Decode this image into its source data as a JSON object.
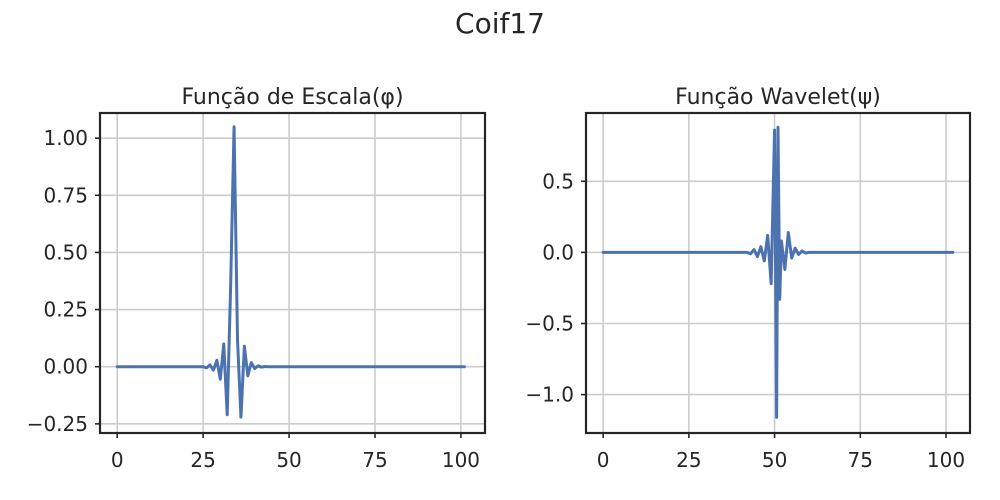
{
  "figure": {
    "title": "Coif17"
  },
  "chart_data": [
    {
      "type": "line",
      "title": "Função de Escala(φ)",
      "xlabel": "",
      "ylabel": "",
      "xlim": [
        -5,
        107
      ],
      "ylim": [
        -0.29,
        1.11
      ],
      "xticks": [
        0,
        25,
        50,
        75,
        100
      ],
      "xtick_labels": [
        "0",
        "25",
        "50",
        "75",
        "100"
      ],
      "yticks": [
        -0.25,
        0,
        0.25,
        0.5,
        0.75,
        1.0
      ],
      "ytick_labels": [
        "−0.25",
        "0.00",
        "0.25",
        "0.50",
        "0.75",
        "1.00"
      ],
      "grid": true,
      "color": "#4c72b0",
      "series": [
        {
          "x": [
            0,
            25,
            26,
            27,
            28,
            29,
            30,
            31,
            32,
            33,
            34,
            35,
            36,
            37,
            38,
            39,
            40,
            41,
            42,
            43,
            44,
            45,
            101
          ],
          "y": [
            0,
            0,
            -0.005,
            0.008,
            -0.015,
            0.028,
            -0.055,
            0.1,
            -0.21,
            0.35,
            1.05,
            0.12,
            -0.22,
            0.09,
            -0.04,
            0.018,
            -0.008,
            0.004,
            -0.002,
            0.001,
            0,
            0,
            0
          ]
        }
      ]
    },
    {
      "type": "line",
      "title": "Função Wavelet(ψ)",
      "xlabel": "",
      "ylabel": "",
      "xlim": [
        -5,
        107
      ],
      "ylim": [
        -1.27,
        0.98
      ],
      "xticks": [
        0,
        25,
        50,
        75,
        100
      ],
      "xtick_labels": [
        "0",
        "25",
        "50",
        "75",
        "100"
      ],
      "yticks": [
        -1.0,
        -0.5,
        0,
        0.5
      ],
      "ytick_labels": [
        "−1.0",
        "−0.5",
        "0.0",
        "0.5"
      ],
      "grid": true,
      "color": "#4c72b0",
      "series": [
        {
          "x": [
            0,
            42,
            43,
            44,
            45,
            46,
            47,
            48,
            49,
            50,
            50.6,
            51,
            51.5,
            52,
            53,
            54,
            55,
            56,
            57,
            58,
            59,
            60,
            102
          ],
          "y": [
            0,
            0,
            -0.01,
            0.02,
            -0.03,
            0.04,
            -0.06,
            0.12,
            -0.22,
            0.86,
            -1.16,
            0.88,
            -0.33,
            0.08,
            -0.12,
            0.14,
            -0.04,
            0.03,
            -0.015,
            0.01,
            -0.005,
            0,
            0
          ]
        }
      ]
    }
  ]
}
